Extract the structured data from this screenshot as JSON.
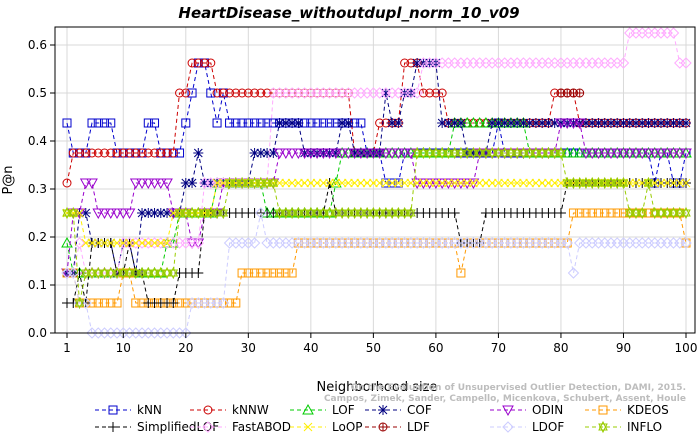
{
  "chart_data": {
    "type": "line",
    "title": "HeartDisease_withoutdupl_norm_10_v09",
    "xlabel": "Neighborhood size",
    "ylabel": "P@n",
    "xlim": [
      1,
      100
    ],
    "ylim": [
      0,
      0.65
    ],
    "x_ticks": [
      "1",
      "10",
      "20",
      "30",
      "40",
      "50",
      "60",
      "70",
      "80",
      "90",
      "100"
    ],
    "y_ticks": [
      "0.0",
      "0.1",
      "0.2",
      "0.3",
      "0.4",
      "0.5",
      "0.6"
    ],
    "grid": true,
    "legend_position": "bottom",
    "watermark_lines": [
      "Campos, Zimek, Sander, Campello, Micenkova, Schubert, Assent, Houle",
      "On the Evaluation of Unsupervised Outlier Detection, DAMI, 2015."
    ],
    "series": [
      {
        "name": "kNN",
        "color": "#0000cc",
        "marker": "square",
        "points": [
          [
            1,
            0.4375
          ],
          [
            2,
            0.375
          ],
          [
            5,
            0.4375
          ],
          [
            9,
            0.375
          ],
          [
            14,
            0.4375
          ],
          [
            16,
            0.375
          ],
          [
            20,
            0.4375
          ],
          [
            21,
            0.5
          ],
          [
            22,
            0.5625
          ],
          [
            24,
            0.5
          ],
          [
            25,
            0.4375
          ],
          [
            26,
            0.5
          ],
          [
            27,
            0.4375
          ],
          [
            49,
            0.375
          ],
          [
            52,
            0.3125
          ],
          [
            55,
            0.375
          ],
          [
            70,
            0.4375
          ],
          [
            71,
            0.375
          ],
          [
            95,
            0.3125
          ],
          [
            96,
            0.375
          ],
          [
            98,
            0.3125
          ],
          [
            100,
            0.375
          ]
        ]
      },
      {
        "name": "kNNW",
        "color": "#cc0000",
        "marker": "circle",
        "points": [
          [
            1,
            0.3125
          ],
          [
            2,
            0.375
          ],
          [
            19,
            0.5
          ],
          [
            21,
            0.5625
          ],
          [
            25,
            0.5
          ],
          [
            47,
            0.375
          ],
          [
            51,
            0.4375
          ],
          [
            55,
            0.5625
          ],
          [
            58,
            0.5
          ],
          [
            62,
            0.4375
          ],
          [
            79,
            0.5
          ],
          [
            83,
            0.4375
          ],
          [
            100,
            0.4375
          ]
        ]
      },
      {
        "name": "LOF",
        "color": "#00cc00",
        "marker": "triangle-up",
        "points": [
          [
            1,
            0.1875
          ],
          [
            2,
            0.125
          ],
          [
            4,
            0.125
          ],
          [
            10,
            0.125
          ],
          [
            17,
            0.1875
          ],
          [
            19,
            0.25
          ],
          [
            25,
            0.3125
          ],
          [
            33,
            0.25
          ],
          [
            44,
            0.3125
          ],
          [
            45,
            0.375
          ],
          [
            56,
            0.375
          ],
          [
            63,
            0.4375
          ],
          [
            75,
            0.375
          ],
          [
            100,
            0.375
          ]
        ]
      },
      {
        "name": "COF",
        "color": "#000080",
        "marker": "asterisk",
        "points": [
          [
            1,
            0.125
          ],
          [
            3,
            0.25
          ],
          [
            5,
            0.1875
          ],
          [
            8,
            0.1875
          ],
          [
            9,
            0.125
          ],
          [
            10,
            0.1875
          ],
          [
            12,
            0.125
          ],
          [
            13,
            0.25
          ],
          [
            19,
            0.25
          ],
          [
            20,
            0.3125
          ],
          [
            22,
            0.375
          ],
          [
            23,
            0.3125
          ],
          [
            31,
            0.375
          ],
          [
            35,
            0.4375
          ],
          [
            39,
            0.375
          ],
          [
            45,
            0.4375
          ],
          [
            47,
            0.375
          ],
          [
            52,
            0.5
          ],
          [
            53,
            0.4375
          ],
          [
            55,
            0.5
          ],
          [
            57,
            0.5625
          ],
          [
            60,
            0.5625
          ],
          [
            61,
            0.4375
          ],
          [
            65,
            0.375
          ],
          [
            69,
            0.4375
          ],
          [
            100,
            0.4375
          ]
        ]
      },
      {
        "name": "ODIN",
        "color": "#9900cc",
        "marker": "triangle-down",
        "points": [
          [
            1,
            0.125
          ],
          [
            2,
            0.25
          ],
          [
            4,
            0.3125
          ],
          [
            6,
            0.25
          ],
          [
            8,
            0.25
          ],
          [
            10,
            0.25
          ],
          [
            12,
            0.3125
          ],
          [
            16,
            0.3125
          ],
          [
            18,
            0.25
          ],
          [
            20,
            0.25
          ],
          [
            21,
            0.1875
          ],
          [
            23,
            0.25
          ],
          [
            26,
            0.3125
          ],
          [
            33,
            0.3125
          ],
          [
            35,
            0.375
          ],
          [
            50,
            0.375
          ],
          [
            57,
            0.3125
          ],
          [
            65,
            0.3125
          ],
          [
            67,
            0.375
          ],
          [
            80,
            0.4375
          ],
          [
            82,
            0.4375
          ],
          [
            84,
            0.375
          ],
          [
            100,
            0.375
          ]
        ]
      },
      {
        "name": "KDEOS",
        "color": "#ff9900",
        "marker": "square",
        "points": [
          [
            1,
            0.125
          ],
          [
            3,
            0.0625
          ],
          [
            9,
            0.0625
          ],
          [
            10,
            0.125
          ],
          [
            12,
            0.0625
          ],
          [
            19,
            0.0625
          ],
          [
            28,
            0.0625
          ],
          [
            29,
            0.125
          ],
          [
            34,
            0.125
          ],
          [
            38,
            0.1875
          ],
          [
            63,
            0.1875
          ],
          [
            64,
            0.125
          ],
          [
            65,
            0.1875
          ],
          [
            82,
            0.25
          ],
          [
            100,
            0.1875
          ]
        ]
      },
      {
        "name": "SimplifiedLOF",
        "color": "#000000",
        "marker": "plus",
        "points": [
          [
            1,
            0.0625
          ],
          [
            3,
            0.125
          ],
          [
            4,
            0.0625
          ],
          [
            5,
            0.1875
          ],
          [
            8,
            0.1875
          ],
          [
            9,
            0.125
          ],
          [
            11,
            0.1875
          ],
          [
            12,
            0.125
          ],
          [
            14,
            0.0625
          ],
          [
            19,
            0.125
          ],
          [
            22,
            0.125
          ],
          [
            23,
            0.25
          ],
          [
            42,
            0.25
          ],
          [
            43,
            0.3125
          ],
          [
            44,
            0.25
          ],
          [
            64,
            0.1875
          ],
          [
            68,
            0.25
          ],
          [
            80,
            0.25
          ],
          [
            81,
            0.3125
          ],
          [
            100,
            0.3125
          ]
        ]
      },
      {
        "name": "FastABOD",
        "color": "#ffaaff",
        "marker": "diamond",
        "points": [
          [
            1,
            0.125
          ],
          [
            3,
            0.1875
          ],
          [
            4,
            0.125
          ],
          [
            9,
            0.125
          ],
          [
            10,
            0.1875
          ],
          [
            19,
            0.1875
          ],
          [
            23,
            0.3125
          ],
          [
            34,
            0.5
          ],
          [
            53,
            0.5
          ],
          [
            58,
            0.5625
          ],
          [
            90,
            0.5625
          ],
          [
            91,
            0.625
          ],
          [
            98,
            0.625
          ],
          [
            99,
            0.5625
          ],
          [
            100,
            0.5625
          ]
        ]
      },
      {
        "name": "LoOP",
        "color": "#ffee00",
        "marker": "x",
        "points": [
          [
            1,
            0.25
          ],
          [
            3,
            0.25
          ],
          [
            4,
            0.1875
          ],
          [
            8,
            0.1875
          ],
          [
            10,
            0.1875
          ],
          [
            17,
            0.1875
          ],
          [
            18,
            0.25
          ],
          [
            24,
            0.25
          ],
          [
            25,
            0.3125
          ],
          [
            100,
            0.3125
          ]
        ]
      },
      {
        "name": "LDF",
        "color": "#990000",
        "marker": "circle-plus",
        "points": [
          [
            80,
            0.5
          ],
          [
            83,
            0.5
          ]
        ]
      },
      {
        "name": "LDOF",
        "color": "#ccccff",
        "marker": "diamond",
        "points": [
          [
            1,
            0.125
          ],
          [
            3,
            0.0625
          ],
          [
            5,
            0
          ],
          [
            17,
            0
          ],
          [
            21,
            0.0625
          ],
          [
            25,
            0.0625
          ],
          [
            27,
            0.1875
          ],
          [
            32,
            0.25
          ],
          [
            33,
            0.1875
          ],
          [
            81,
            0.1875
          ],
          [
            82,
            0.125
          ],
          [
            83,
            0.1875
          ],
          [
            100,
            0.1875
          ]
        ]
      },
      {
        "name": "INFLO",
        "color": "#99cc00",
        "marker": "hexstar",
        "points": [
          [
            1,
            0.25
          ],
          [
            2,
            0.25
          ],
          [
            3,
            0.0625
          ],
          [
            4,
            0.125
          ],
          [
            10,
            0.125
          ],
          [
            19,
            0.25
          ],
          [
            27,
            0.3125
          ],
          [
            34,
            0.3125
          ],
          [
            35,
            0.25
          ],
          [
            56,
            0.25
          ],
          [
            57,
            0.375
          ],
          [
            81,
            0.3125
          ],
          [
            91,
            0.25
          ],
          [
            94,
            0.3125
          ],
          [
            95,
            0.25
          ],
          [
            100,
            0.25
          ]
        ]
      }
    ]
  }
}
